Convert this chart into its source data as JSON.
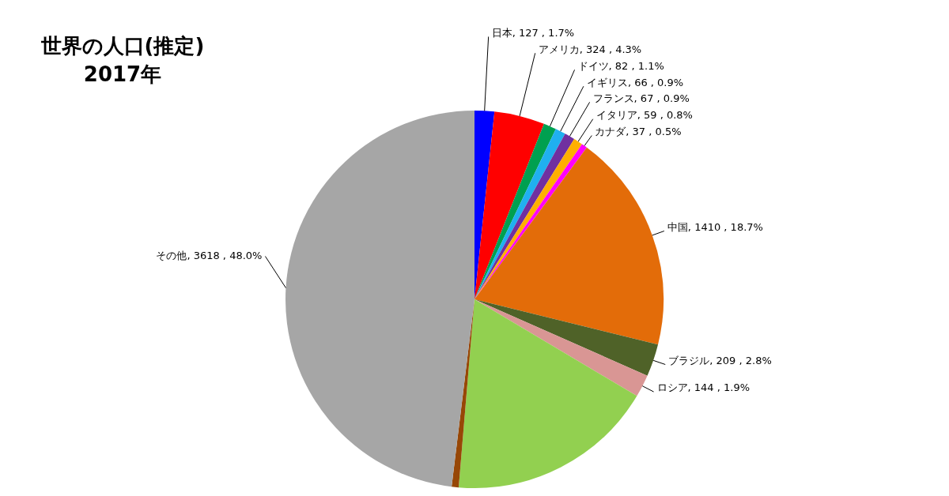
{
  "chart_data": {
    "type": "pie",
    "title": "世界の人口(推定)",
    "subtitle": "2017年",
    "categories": [
      "日本",
      "アメリカ",
      "ドイツ",
      "イギリス",
      "フランス",
      "イタリア",
      "カナダ",
      "中国",
      "ブラジル",
      "ロシア",
      null,
      null,
      "その他"
    ],
    "values": [
      127,
      324,
      82,
      66,
      67,
      59,
      37,
      1410,
      209,
      144,
      1339,
      45,
      3618
    ],
    "value_labels": [
      "127 , 1.7%",
      "324 , 4.3%",
      "82 , 1.1%",
      "66 , 0.9%",
      "67 , 0.9%",
      "59 , 0.8%",
      "37 , 0.5%",
      "1410 , 18.7%",
      "209 , 2.8%",
      "144 , 1.9%",
      null,
      null,
      "3618 , 48.0%"
    ],
    "colors": [
      "#0000ff",
      "#ff0000",
      "#00a050",
      "#20b0f0",
      "#7030a0",
      "#ffb000",
      "#ff00ff",
      "#e36c09",
      "#4f6228",
      "#d99694",
      "#92d050",
      "#974706",
      "#a6a6a6"
    ],
    "legend": false
  }
}
